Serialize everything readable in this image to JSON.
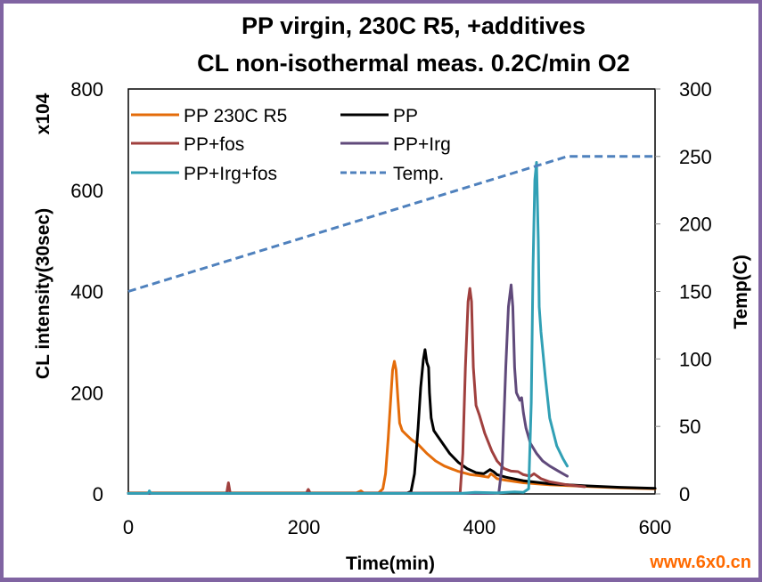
{
  "chart_data": {
    "type": "line",
    "title": [
      "PP virgin, 230C R5, +additives",
      "CL non-isothermal meas.  0.2C/min   O2"
    ],
    "xlabel": "Time(min)",
    "ylabel": "CL intensity(30sec)",
    "ylabel_multiplier": "x104",
    "y2label": "Temp(C)",
    "xlim": [
      0,
      600
    ],
    "ylim": [
      0,
      800
    ],
    "y2lim": [
      0,
      300
    ],
    "xticks": [
      "0",
      "200",
      "400",
      "600"
    ],
    "yticks": [
      "0",
      "200",
      "400",
      "600",
      "800"
    ],
    "y2ticks": [
      "0",
      "50",
      "100",
      "150",
      "200",
      "250",
      "300"
    ],
    "grid": false,
    "legend_position": "top-left",
    "series": [
      {
        "name": "PP 230C R5",
        "color": "#e46c0a",
        "axis": "left",
        "style": "solid",
        "x": [
          0,
          260,
          265,
          268,
          285,
          290,
          293,
          296,
          299,
          301,
          303,
          305,
          307,
          309,
          312,
          316,
          322,
          330,
          340,
          350,
          360,
          375,
          390,
          400,
          410,
          413,
          416,
          420,
          430,
          450,
          480,
          520,
          560,
          600
        ],
        "y": [
          2,
          2,
          6,
          2,
          2,
          10,
          40,
          110,
          190,
          245,
          262,
          245,
          190,
          140,
          125,
          118,
          108,
          98,
          80,
          65,
          55,
          45,
          38,
          36,
          33,
          40,
          36,
          30,
          27,
          22,
          18,
          15,
          12,
          10
        ]
      },
      {
        "name": "PP",
        "color": "#000000",
        "axis": "left",
        "style": "solid",
        "x": [
          0,
          310,
          318,
          322,
          326,
          330,
          333,
          336,
          338,
          340,
          342,
          343,
          345,
          348,
          352,
          358,
          366,
          376,
          386,
          396,
          405,
          412,
          416,
          420,
          430,
          450,
          480,
          520,
          560,
          600
        ],
        "y": [
          1,
          1,
          2,
          5,
          40,
          130,
          210,
          265,
          285,
          260,
          250,
          200,
          150,
          125,
          115,
          100,
          80,
          62,
          50,
          42,
          40,
          48,
          44,
          38,
          33,
          26,
          20,
          16,
          13,
          11
        ]
      },
      {
        "name": "PP+fos",
        "color": "#a0403e",
        "axis": "left",
        "style": "solid",
        "x": [
          0,
          112,
          113,
          114,
          115,
          116,
          203,
          204,
          205,
          206,
          207,
          378,
          381,
          384,
          387,
          389,
          391,
          393,
          396,
          400,
          406,
          414,
          420,
          428,
          436,
          444,
          450,
          458,
          462,
          470,
          480,
          500,
          520
        ],
        "y": [
          1,
          1,
          12,
          22,
          12,
          1,
          1,
          6,
          9,
          6,
          1,
          2,
          80,
          250,
          380,
          406,
          380,
          250,
          175,
          155,
          120,
          85,
          65,
          50,
          45,
          44,
          38,
          35,
          40,
          30,
          24,
          18,
          14
        ]
      },
      {
        "name": "PP+Irg",
        "color": "#604a7b",
        "axis": "left",
        "style": "solid",
        "x": [
          0,
          415,
          422,
          426,
          430,
          433,
          436,
          438,
          440,
          442,
          446,
          448,
          449,
          450,
          453,
          458,
          465,
          472,
          480,
          490,
          500
        ],
        "y": [
          1,
          1,
          2,
          60,
          250,
          370,
          413,
          370,
          250,
          200,
          185,
          190,
          175,
          160,
          130,
          100,
          80,
          65,
          55,
          45,
          35
        ]
      },
      {
        "name": "PP+Irg+fos",
        "color": "#31a0b5",
        "axis": "left",
        "style": "solid",
        "x": [
          0,
          22,
          23,
          24,
          25,
          26,
          380,
          395,
          420,
          440,
          450,
          456,
          459,
          461,
          463,
          465,
          467,
          468,
          470,
          475,
          480,
          488,
          495,
          500
        ],
        "y": [
          1,
          1,
          3,
          6,
          3,
          1,
          1,
          3,
          2,
          4,
          3,
          10,
          180,
          450,
          620,
          655,
          500,
          370,
          320,
          230,
          150,
          95,
          70,
          55
        ]
      },
      {
        "name": "Temp.",
        "color": "#4f81bd",
        "axis": "right",
        "style": "dashed",
        "x": [
          0,
          500,
          600
        ],
        "y": [
          150,
          250,
          250
        ]
      }
    ]
  },
  "watermark": "www.6x0.cn"
}
